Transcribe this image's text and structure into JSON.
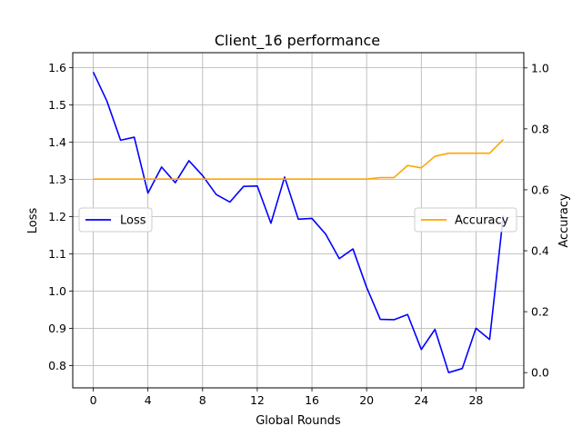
{
  "chart_data": {
    "type": "line",
    "title": "Client_16 performance",
    "xlabel": "Global Rounds",
    "ylabel_left": "Loss",
    "ylabel_right": "Accuracy",
    "xlim": [
      -1.5,
      31.5
    ],
    "ylim_left": [
      0.74,
      1.64
    ],
    "ylim_right": [
      -0.05,
      1.05
    ],
    "x_ticks": [
      0,
      4,
      8,
      12,
      16,
      20,
      24,
      28
    ],
    "y_ticks_left": [
      0.8,
      0.9,
      1.0,
      1.1,
      1.2,
      1.3,
      1.4,
      1.5,
      1.6
    ],
    "y_ticks_right": [
      0.0,
      0.2,
      0.4,
      0.6,
      0.8,
      1.0
    ],
    "grid": true,
    "x": [
      0,
      1,
      2,
      3,
      4,
      5,
      6,
      7,
      8,
      9,
      10,
      11,
      12,
      13,
      14,
      15,
      16,
      17,
      18,
      19,
      20,
      21,
      22,
      23,
      24,
      25,
      26,
      27,
      28,
      29,
      30
    ],
    "series": [
      {
        "name": "Loss",
        "axis": "left",
        "color": "#0000ff",
        "legend_position": "center-left",
        "values": [
          1.588,
          1.51,
          1.405,
          1.413,
          1.263,
          1.333,
          1.291,
          1.35,
          1.31,
          1.259,
          1.239,
          1.281,
          1.282,
          1.182,
          1.306,
          1.193,
          1.195,
          1.153,
          1.087,
          1.113,
          1.01,
          0.924,
          0.923,
          0.937,
          0.843,
          0.897,
          0.781,
          0.792,
          0.9,
          0.87,
          1.203
        ]
      },
      {
        "name": "Accuracy",
        "axis": "right",
        "color": "#ffa500",
        "legend_position": "center-right",
        "values": [
          0.635,
          0.635,
          0.635,
          0.635,
          0.635,
          0.635,
          0.635,
          0.635,
          0.635,
          0.635,
          0.635,
          0.635,
          0.635,
          0.635,
          0.635,
          0.635,
          0.635,
          0.635,
          0.635,
          0.635,
          0.635,
          0.64,
          0.64,
          0.68,
          0.672,
          0.71,
          0.72,
          0.72,
          0.72,
          0.72,
          0.765
        ]
      }
    ]
  }
}
